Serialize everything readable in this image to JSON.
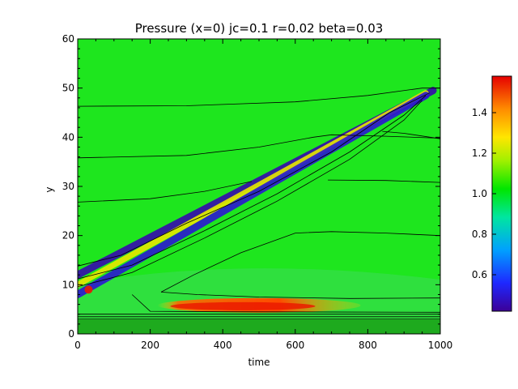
{
  "chart_data": {
    "type": "heatmap",
    "title": "Pressure (x=0) jc=0.1 r=0.02 beta=0.03",
    "xlabel": "time",
    "ylabel": "y",
    "xlim": [
      0,
      1000
    ],
    "ylim": [
      0,
      60
    ],
    "x_ticks": [
      "0",
      "200",
      "400",
      "600",
      "800",
      "1000"
    ],
    "y_ticks": [
      "0",
      "10",
      "20",
      "30",
      "40",
      "50",
      "60"
    ],
    "colorbar": {
      "range": [
        0.42,
        1.58
      ],
      "ticks": [
        "0.6",
        "0.8",
        "1.0",
        "1.2",
        "1.4"
      ],
      "colormap": "rainbow"
    },
    "background_value": 1.0,
    "features": [
      {
        "kind": "trough",
        "description_value": 0.45,
        "from": [
          0,
          12
        ],
        "to": [
          980,
          49.5
        ]
      },
      {
        "kind": "ridge",
        "description_value": 1.25,
        "from": [
          0,
          10
        ],
        "to": [
          960,
          49
        ]
      },
      {
        "kind": "trough",
        "description_value": 0.5,
        "from": [
          0,
          8
        ],
        "to": [
          960,
          48.5
        ]
      },
      {
        "kind": "hot_band",
        "description_value": 1.55,
        "x_range": [
          220,
          780
        ],
        "y": 5.8
      },
      {
        "kind": "hot_spot",
        "description_value": 1.55,
        "x": 30,
        "y": 9
      }
    ],
    "contours": [
      {
        "points": [
          [
            0,
            46.3
          ],
          [
            300,
            46.4
          ],
          [
            600,
            47.2
          ],
          [
            800,
            48.5
          ],
          [
            950,
            50
          ],
          [
            1000,
            50
          ]
        ]
      },
      {
        "points": [
          [
            0,
            35.8
          ],
          [
            300,
            36.3
          ],
          [
            500,
            38
          ],
          [
            650,
            40
          ],
          [
            700,
            40.5
          ],
          [
            850,
            40.2
          ],
          [
            1000,
            39.8
          ]
        ]
      },
      {
        "points": [
          [
            0,
            26.8
          ],
          [
            200,
            27.5
          ],
          [
            350,
            29
          ],
          [
            480,
            31
          ]
        ]
      },
      {
        "points": [
          [
            690,
            31.3
          ],
          [
            850,
            31.2
          ],
          [
            1000,
            30.8
          ]
        ]
      },
      {
        "points": [
          [
            840,
            41.2
          ],
          [
            900,
            40.8
          ],
          [
            1000,
            39.7
          ]
        ]
      },
      {
        "points": [
          [
            230,
            8.5
          ],
          [
            320,
            12
          ],
          [
            450,
            16.5
          ],
          [
            600,
            20.5
          ],
          [
            700,
            20.8
          ],
          [
            850,
            20.5
          ],
          [
            1000,
            20
          ]
        ]
      },
      {
        "points": [
          [
            230,
            8.5
          ],
          [
            330,
            8
          ],
          [
            500,
            7.5
          ],
          [
            750,
            7.2
          ],
          [
            1000,
            7.3
          ]
        ]
      },
      {
        "points": [
          [
            150,
            8
          ],
          [
            200,
            4.6
          ],
          [
            400,
            4.5
          ],
          [
            1000,
            4.4
          ]
        ]
      },
      {
        "points": [
          [
            0,
            13.8
          ],
          [
            120,
            16
          ],
          [
            300,
            22.5
          ],
          [
            500,
            29
          ],
          [
            700,
            37
          ],
          [
            860,
            45
          ],
          [
            970,
            49
          ]
        ]
      },
      {
        "points": [
          [
            0,
            11.2
          ],
          [
            150,
            14
          ],
          [
            350,
            21
          ],
          [
            550,
            28.5
          ],
          [
            750,
            37
          ],
          [
            900,
            44.5
          ],
          [
            960,
            48.5
          ]
        ]
      },
      {
        "points": [
          [
            0,
            9.6
          ],
          [
            150,
            12.5
          ],
          [
            350,
            19.5
          ],
          [
            550,
            27
          ],
          [
            750,
            35.5
          ],
          [
            900,
            43.5
          ],
          [
            950,
            47.5
          ]
        ]
      },
      {
        "points": [
          [
            0,
            4.0
          ],
          [
            1000,
            4.0
          ]
        ]
      },
      {
        "points": [
          [
            0,
            3.5
          ],
          [
            1000,
            3.5
          ]
        ]
      },
      {
        "points": [
          [
            0,
            3.0
          ],
          [
            1000,
            3.0
          ]
        ]
      },
      {
        "points": [
          [
            0,
            2.5
          ],
          [
            1000,
            2.5
          ]
        ]
      },
      {
        "points": [
          [
            0,
            2.0
          ],
          [
            1000,
            2.0
          ]
        ]
      },
      {
        "points": [
          [
            0,
            1.5
          ],
          [
            1000,
            1.5
          ]
        ]
      },
      {
        "points": [
          [
            0,
            1.0
          ],
          [
            1000,
            1.0
          ]
        ]
      },
      {
        "points": [
          [
            0,
            0.5
          ],
          [
            1000,
            0.5
          ]
        ]
      }
    ]
  }
}
